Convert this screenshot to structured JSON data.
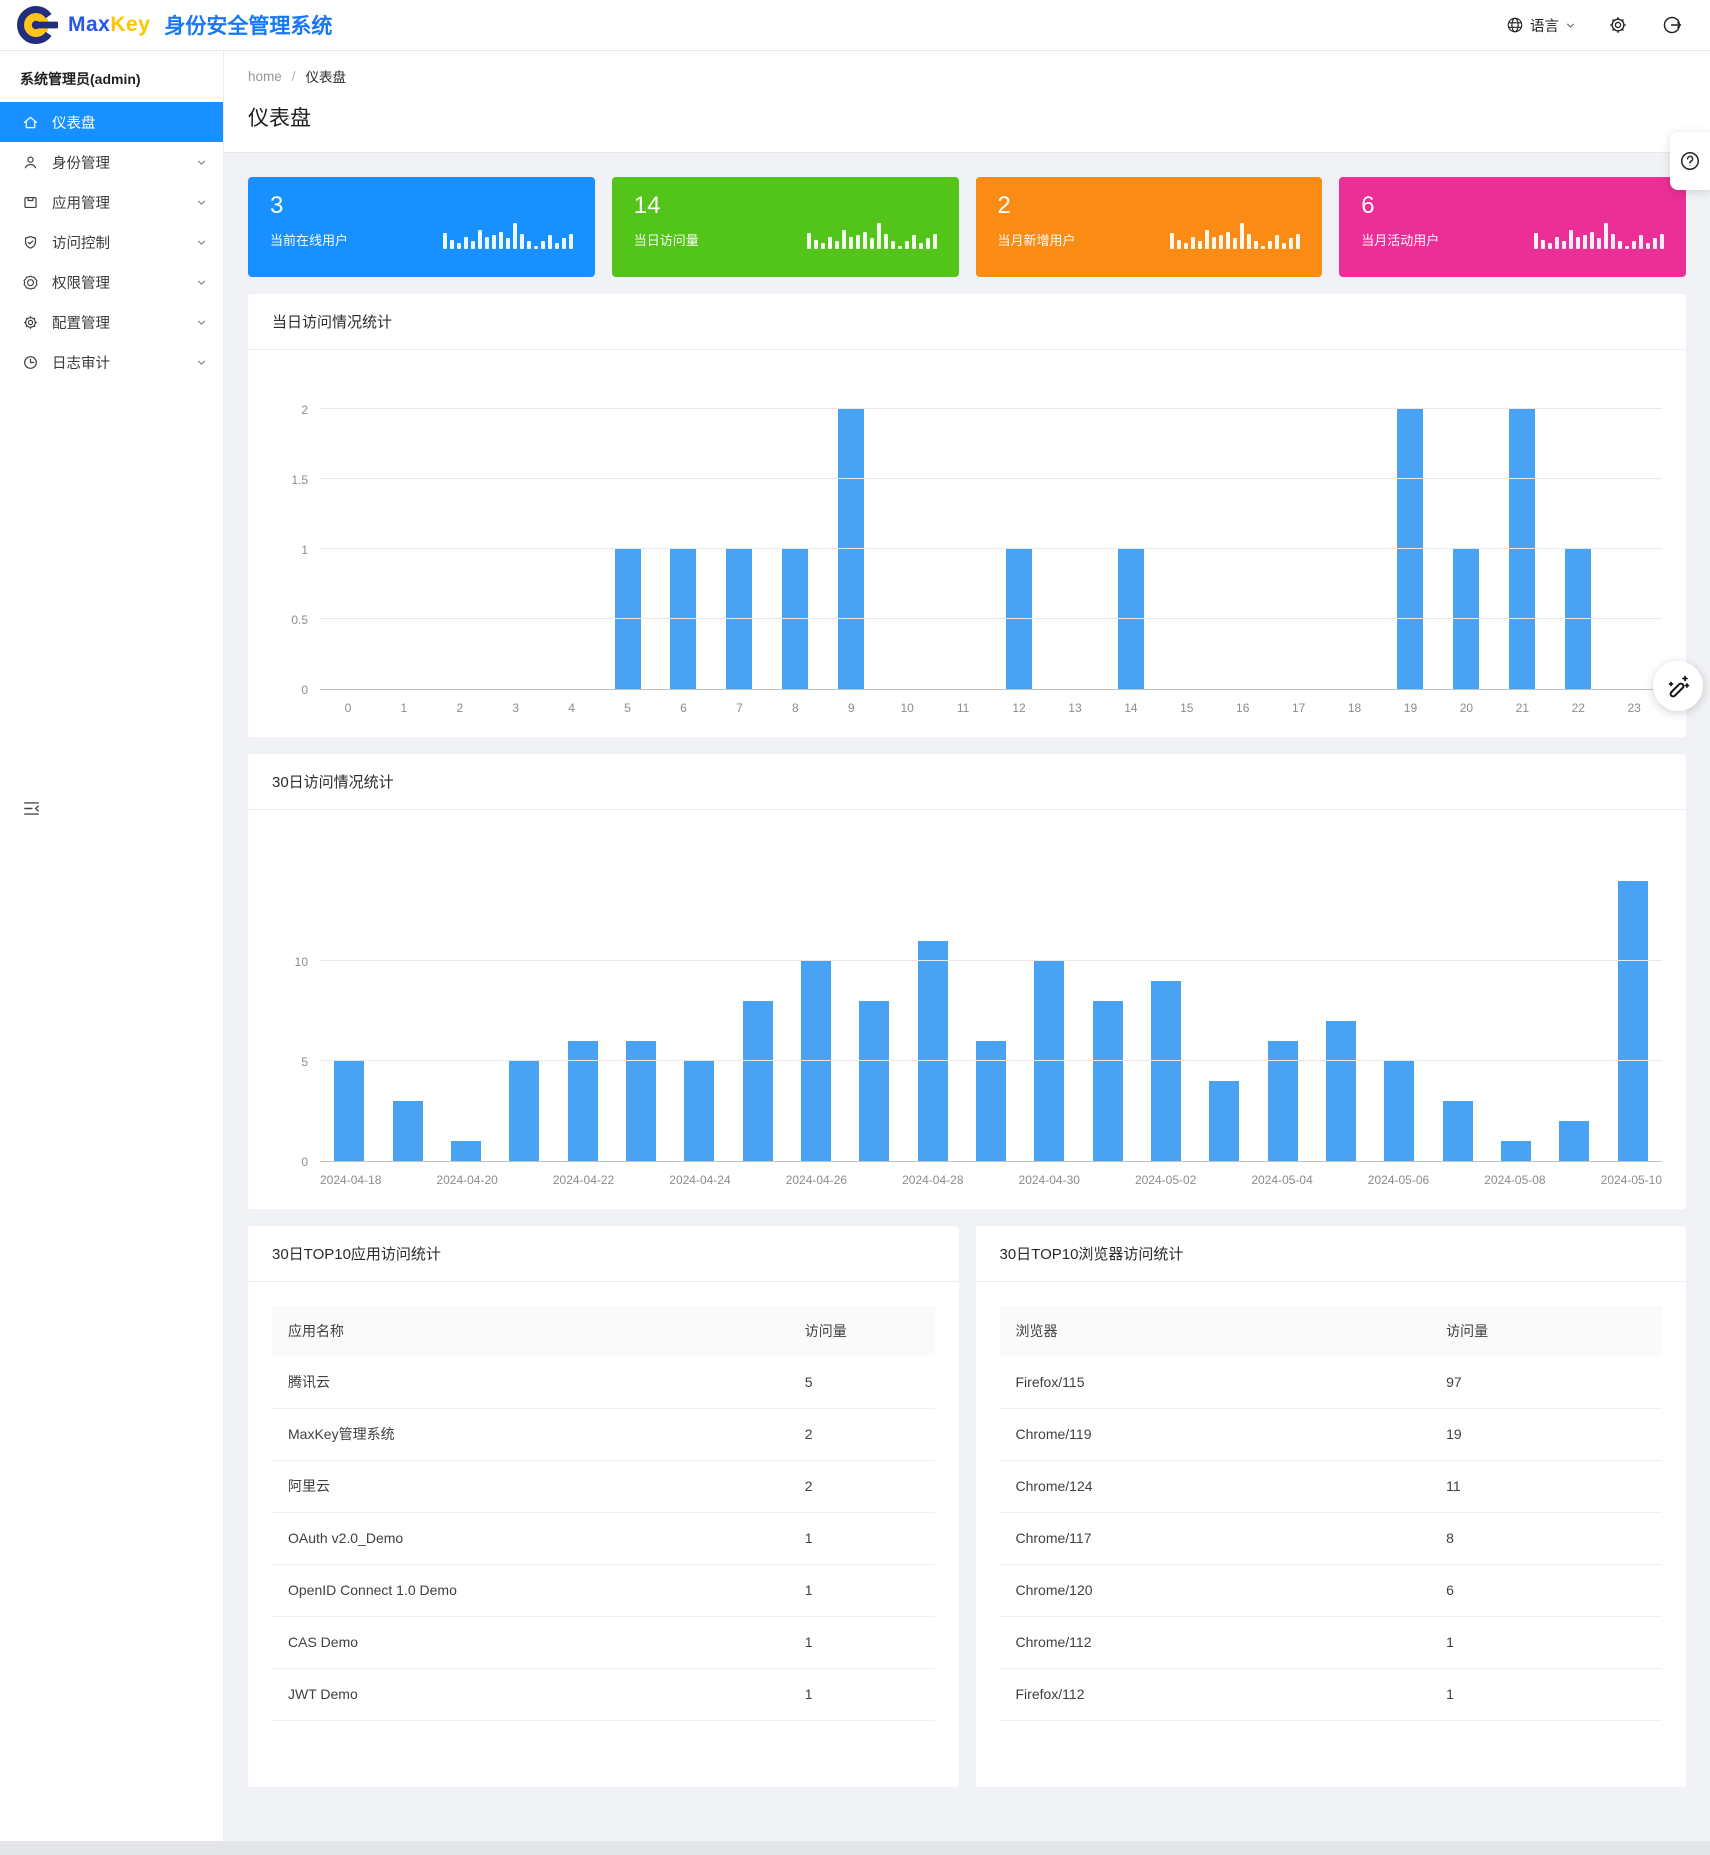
{
  "topbar": {
    "brand_max": "Max",
    "brand_key": "Key",
    "brand_title": "身份安全管理系统",
    "language_label": "语言"
  },
  "sidebar": {
    "user": "系统管理员(admin)",
    "items": [
      {
        "label": "仪表盘",
        "icon": "home",
        "selected": true,
        "expandable": false
      },
      {
        "label": "身份管理",
        "icon": "user",
        "selected": false,
        "expandable": true
      },
      {
        "label": "应用管理",
        "icon": "app",
        "selected": false,
        "expandable": true
      },
      {
        "label": "访问控制",
        "icon": "shield",
        "selected": false,
        "expandable": true
      },
      {
        "label": "权限管理",
        "icon": "medal",
        "selected": false,
        "expandable": true
      },
      {
        "label": "配置管理",
        "icon": "gear",
        "selected": false,
        "expandable": true
      },
      {
        "label": "日志审计",
        "icon": "clock",
        "selected": false,
        "expandable": true
      }
    ]
  },
  "breadcrumb": {
    "home": "home",
    "separator": "/",
    "current": "仪表盘"
  },
  "page_title": "仪表盘",
  "stat_cards": [
    {
      "value": "3",
      "label": "当前在线用户",
      "color": "#1890ff"
    },
    {
      "value": "14",
      "label": "当日访问量",
      "color": "#52c41a"
    },
    {
      "value": "2",
      "label": "当月新增用户",
      "color": "#fa8c16"
    },
    {
      "value": "6",
      "label": "当月活动用户",
      "color": "#eb2f96"
    }
  ],
  "stat_cards_sparkline": [
    16,
    9,
    6,
    12,
    8,
    19,
    12,
    14,
    17,
    11,
    26,
    15,
    8,
    3,
    8,
    14,
    6,
    11,
    15
  ],
  "chart_data": [
    {
      "type": "bar",
      "title": "当日访问情况统计",
      "x": [
        "0",
        "1",
        "2",
        "3",
        "4",
        "5",
        "6",
        "7",
        "8",
        "9",
        "10",
        "11",
        "12",
        "13",
        "14",
        "15",
        "16",
        "17",
        "18",
        "19",
        "20",
        "21",
        "22",
        "23"
      ],
      "values": [
        0,
        0,
        0,
        0,
        0,
        1,
        1,
        1,
        1,
        2,
        0,
        0,
        1,
        0,
        1,
        0,
        0,
        0,
        0,
        2,
        1,
        2,
        1,
        0
      ],
      "ylim": [
        0,
        2
      ],
      "yticks": [
        0,
        0.5,
        1,
        1.5,
        2
      ],
      "label_every": 1,
      "bar_color": "#49a3f2",
      "grid": true,
      "legend": "none"
    },
    {
      "type": "bar",
      "title": "30日访问情况统计",
      "x": [
        "2024-04-18",
        "2024-04-19",
        "2024-04-20",
        "2024-04-21",
        "2024-04-22",
        "2024-04-23",
        "2024-04-24",
        "2024-04-25",
        "2024-04-26",
        "2024-04-27",
        "2024-04-28",
        "2024-04-29",
        "2024-04-30",
        "2024-05-01",
        "2024-05-02",
        "2024-05-03",
        "2024-05-04",
        "2024-05-05",
        "2024-05-06",
        "2024-05-07",
        "2024-05-08",
        "2024-05-09",
        "2024-05-10"
      ],
      "values": [
        5,
        3,
        1,
        5,
        6,
        6,
        5,
        8,
        10,
        8,
        11,
        6,
        10,
        8,
        9,
        4,
        6,
        7,
        5,
        3,
        1,
        2,
        14
      ],
      "ylim": [
        0,
        15
      ],
      "yticks": [
        0,
        5,
        10
      ],
      "label_every": 2,
      "bar_color": "#49a3f2",
      "grid": true,
      "legend": "none"
    }
  ],
  "tables": [
    {
      "title": "30日TOP10应用访问统计",
      "columns": [
        "应用名称",
        "访问量"
      ],
      "rows": [
        [
          "腾讯云",
          "5"
        ],
        [
          "MaxKey管理系统",
          "2"
        ],
        [
          "阿里云",
          "2"
        ],
        [
          "OAuth v2.0_Demo",
          "1"
        ],
        [
          "OpenID Connect 1.0 Demo",
          "1"
        ],
        [
          "CAS Demo",
          "1"
        ],
        [
          "JWT Demo",
          "1"
        ]
      ]
    },
    {
      "title": "30日TOP10浏览器访问统计",
      "columns": [
        "浏览器",
        "访问量"
      ],
      "rows": [
        [
          "Firefox/115",
          "97"
        ],
        [
          "Chrome/119",
          "19"
        ],
        [
          "Chrome/124",
          "11"
        ],
        [
          "Chrome/117",
          "8"
        ],
        [
          "Chrome/120",
          "6"
        ],
        [
          "Chrome/112",
          "1"
        ],
        [
          "Firefox/112",
          "1"
        ]
      ]
    }
  ]
}
